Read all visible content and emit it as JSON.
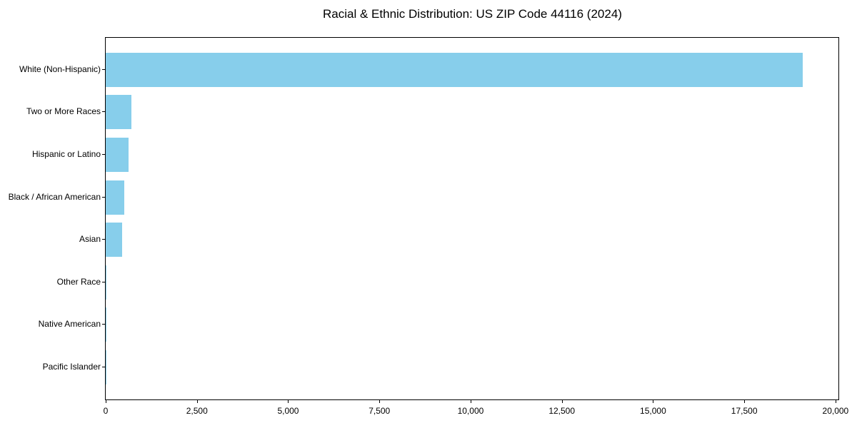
{
  "chart_data": {
    "type": "bar",
    "orientation": "horizontal",
    "title": "Racial & Ethnic Distribution: US ZIP Code 44116 (2024)",
    "categories": [
      "White (Non-Hispanic)",
      "Two or More Races",
      "Hispanic or Latino",
      "Black / African American",
      "Asian",
      "Other Race",
      "Native American",
      "Pacific Islander"
    ],
    "values": [
      19100,
      700,
      620,
      510,
      450,
      20,
      8,
      4
    ],
    "xlabel": "",
    "ylabel": "",
    "xlim": [
      0,
      20100
    ],
    "x_ticks": [
      0,
      2500,
      5000,
      7500,
      10000,
      12500,
      15000,
      17500,
      20000
    ],
    "x_tick_labels": [
      "0",
      "2,500",
      "5,000",
      "7,500",
      "10,000",
      "12,500",
      "15,000",
      "17,500",
      "20,000"
    ],
    "bar_color": "#87ceeb",
    "grid": false,
    "legend": null
  }
}
